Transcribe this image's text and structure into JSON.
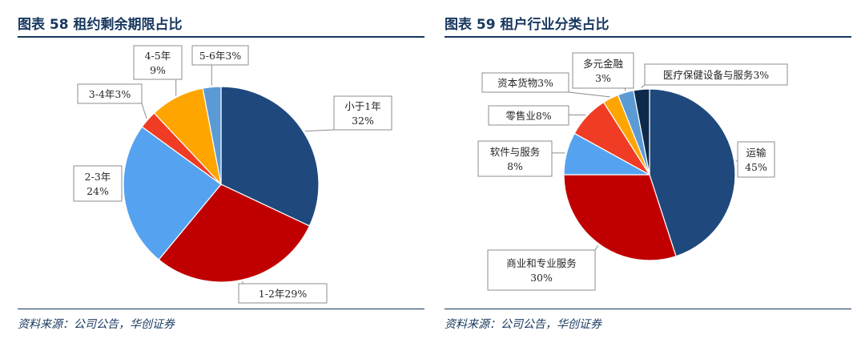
{
  "source_text": "资料来源：公司公告，华创证券",
  "chart_data": [
    {
      "type": "pie",
      "title": "图表 58   租约剩余期限占比",
      "slices": [
        {
          "label": "小于1年",
          "value": 32,
          "display": "32%",
          "color": "#1F497D"
        },
        {
          "label": "1-2年",
          "value": 29,
          "display": "29%",
          "color": "#C00000"
        },
        {
          "label": "2-3年",
          "value": 24,
          "display": "24%",
          "color": "#55A3F0"
        },
        {
          "label": "3-4年",
          "value": 3,
          "display": "3%",
          "color": "#F03C24"
        },
        {
          "label": "4-5年",
          "value": 9,
          "display": "9%",
          "color": "#FFA500"
        },
        {
          "label": "5-6年",
          "value": 3,
          "display": "3%",
          "color": "#5B9BD5"
        }
      ]
    },
    {
      "type": "pie",
      "title": "图表 59   租户行业分类占比",
      "slices": [
        {
          "label": "运输",
          "value": 45,
          "display": "45%",
          "color": "#1F497D"
        },
        {
          "label": "商业和专业服务",
          "value": 30,
          "display": "30%",
          "color": "#C00000"
        },
        {
          "label": "软件与服务",
          "value": 8,
          "display": "8%",
          "color": "#55A3F0"
        },
        {
          "label": "零售业",
          "value": 8,
          "display": "8%",
          "color": "#F03C24"
        },
        {
          "label": "资本货物",
          "value": 3,
          "display": "3%",
          "color": "#FFA500"
        },
        {
          "label": "多元金融",
          "value": 3,
          "display": "3%",
          "color": "#5B9BD5"
        },
        {
          "label": "医疗保健设备与服务",
          "value": 3,
          "display": "3%",
          "color": "#0E2A4A"
        }
      ]
    }
  ]
}
